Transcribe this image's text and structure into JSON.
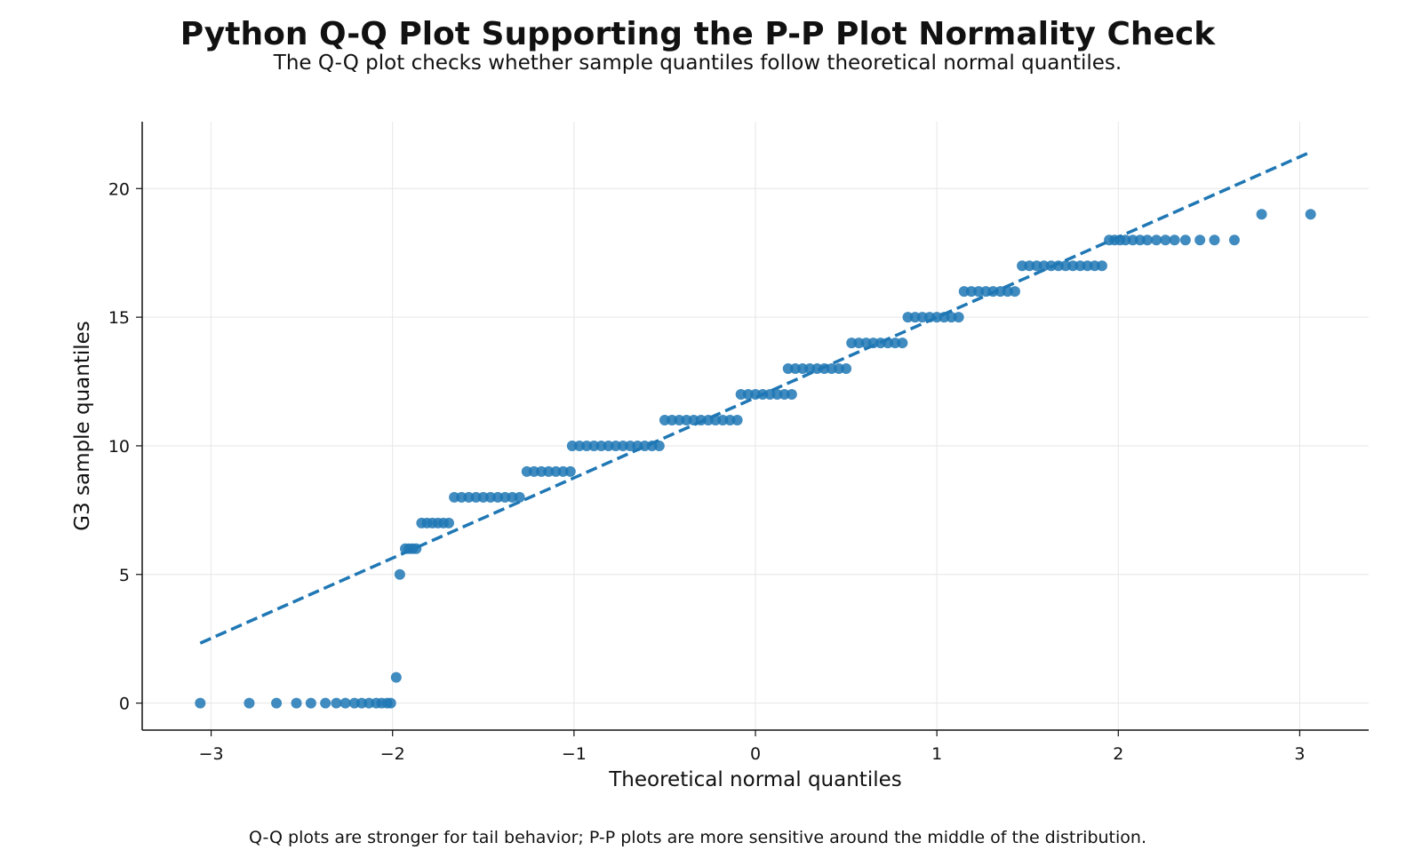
{
  "title": "Python Q-Q Plot Supporting the P-P Plot Normality Check",
  "subtitle": "The Q-Q plot checks whether sample quantiles follow theoretical normal quantiles.",
  "footnote": "Q-Q plots are stronger for tail behavior; P-P plots are more sensitive around the middle of the distribution.",
  "chart_data": {
    "type": "scatter",
    "xlabel": "Theoretical normal quantiles",
    "ylabel": "G3 sample quantiles",
    "xlim": [
      -3.38,
      3.38
    ],
    "ylim": [
      -1.05,
      22.6
    ],
    "xticks": [
      -3,
      -2,
      -1,
      0,
      1,
      2,
      3
    ],
    "xtick_labels": [
      "−3",
      "−2",
      "−1",
      "0",
      "1",
      "2",
      "3"
    ],
    "yticks": [
      0,
      5,
      10,
      15,
      20
    ],
    "ytick_labels": [
      "0",
      "5",
      "10",
      "15",
      "20"
    ],
    "grid": true,
    "colors": {
      "points": "#1f77b4",
      "reference_line": "#1f77b4",
      "grid": "#e6e6e6"
    },
    "reference_line": {
      "style": "dashed",
      "x": [
        -3.06,
        3.06
      ],
      "y": [
        2.33,
        21.42
      ]
    },
    "points": [
      [
        -3.06,
        0
      ],
      [
        -2.79,
        0
      ],
      [
        -2.64,
        0
      ],
      [
        -2.53,
        0
      ],
      [
        -2.45,
        0
      ],
      [
        -2.37,
        0
      ],
      [
        -2.31,
        0
      ],
      [
        -2.26,
        0
      ],
      [
        -2.21,
        0
      ],
      [
        -2.17,
        0
      ],
      [
        -2.13,
        0
      ],
      [
        -2.09,
        0
      ],
      [
        -2.06,
        0
      ],
      [
        -2.03,
        0
      ],
      [
        -2.01,
        0
      ],
      [
        -1.98,
        1
      ],
      [
        -1.96,
        5
      ],
      [
        -1.93,
        6
      ],
      [
        -1.91,
        6
      ],
      [
        -1.89,
        6
      ],
      [
        -1.87,
        6
      ],
      [
        -1.84,
        7
      ],
      [
        -1.81,
        7
      ],
      [
        -1.78,
        7
      ],
      [
        -1.75,
        7
      ],
      [
        -1.72,
        7
      ],
      [
        -1.69,
        7
      ],
      [
        -1.66,
        8
      ],
      [
        -1.62,
        8
      ],
      [
        -1.58,
        8
      ],
      [
        -1.54,
        8
      ],
      [
        -1.5,
        8
      ],
      [
        -1.46,
        8
      ],
      [
        -1.42,
        8
      ],
      [
        -1.38,
        8
      ],
      [
        -1.34,
        8
      ],
      [
        -1.3,
        8
      ],
      [
        -1.26,
        9
      ],
      [
        -1.22,
        9
      ],
      [
        -1.18,
        9
      ],
      [
        -1.14,
        9
      ],
      [
        -1.1,
        9
      ],
      [
        -1.06,
        9
      ],
      [
        -1.02,
        9
      ],
      [
        -1.01,
        10
      ],
      [
        -0.97,
        10
      ],
      [
        -0.93,
        10
      ],
      [
        -0.89,
        10
      ],
      [
        -0.85,
        10
      ],
      [
        -0.81,
        10
      ],
      [
        -0.77,
        10
      ],
      [
        -0.73,
        10
      ],
      [
        -0.69,
        10
      ],
      [
        -0.65,
        10
      ],
      [
        -0.61,
        10
      ],
      [
        -0.57,
        10
      ],
      [
        -0.53,
        10
      ],
      [
        -0.5,
        11
      ],
      [
        -0.46,
        11
      ],
      [
        -0.42,
        11
      ],
      [
        -0.38,
        11
      ],
      [
        -0.34,
        11
      ],
      [
        -0.3,
        11
      ],
      [
        -0.26,
        11
      ],
      [
        -0.22,
        11
      ],
      [
        -0.18,
        11
      ],
      [
        -0.14,
        11
      ],
      [
        -0.1,
        11
      ],
      [
        -0.08,
        12
      ],
      [
        -0.04,
        12
      ],
      [
        0.0,
        12
      ],
      [
        0.04,
        12
      ],
      [
        0.08,
        12
      ],
      [
        0.12,
        12
      ],
      [
        0.16,
        12
      ],
      [
        0.2,
        12
      ],
      [
        0.18,
        13
      ],
      [
        0.22,
        13
      ],
      [
        0.26,
        13
      ],
      [
        0.3,
        13
      ],
      [
        0.34,
        13
      ],
      [
        0.38,
        13
      ],
      [
        0.42,
        13
      ],
      [
        0.46,
        13
      ],
      [
        0.5,
        13
      ],
      [
        0.53,
        14
      ],
      [
        0.57,
        14
      ],
      [
        0.61,
        14
      ],
      [
        0.65,
        14
      ],
      [
        0.69,
        14
      ],
      [
        0.73,
        14
      ],
      [
        0.77,
        14
      ],
      [
        0.81,
        14
      ],
      [
        0.84,
        15
      ],
      [
        0.88,
        15
      ],
      [
        0.92,
        15
      ],
      [
        0.96,
        15
      ],
      [
        1.0,
        15
      ],
      [
        1.04,
        15
      ],
      [
        1.08,
        15
      ],
      [
        1.12,
        15
      ],
      [
        1.15,
        16
      ],
      [
        1.19,
        16
      ],
      [
        1.23,
        16
      ],
      [
        1.27,
        16
      ],
      [
        1.31,
        16
      ],
      [
        1.35,
        16
      ],
      [
        1.39,
        16
      ],
      [
        1.43,
        16
      ],
      [
        1.47,
        17
      ],
      [
        1.51,
        17
      ],
      [
        1.55,
        17
      ],
      [
        1.59,
        17
      ],
      [
        1.63,
        17
      ],
      [
        1.67,
        17
      ],
      [
        1.71,
        17
      ],
      [
        1.75,
        17
      ],
      [
        1.79,
        17
      ],
      [
        1.83,
        17
      ],
      [
        1.87,
        17
      ],
      [
        1.91,
        17
      ],
      [
        1.95,
        18
      ],
      [
        1.98,
        18
      ],
      [
        2.01,
        18
      ],
      [
        2.04,
        18
      ],
      [
        2.08,
        18
      ],
      [
        2.12,
        18
      ],
      [
        2.16,
        18
      ],
      [
        2.21,
        18
      ],
      [
        2.26,
        18
      ],
      [
        2.31,
        18
      ],
      [
        2.37,
        18
      ],
      [
        2.45,
        18
      ],
      [
        2.53,
        18
      ],
      [
        2.64,
        18
      ],
      [
        2.79,
        19
      ],
      [
        3.06,
        19
      ]
    ]
  }
}
